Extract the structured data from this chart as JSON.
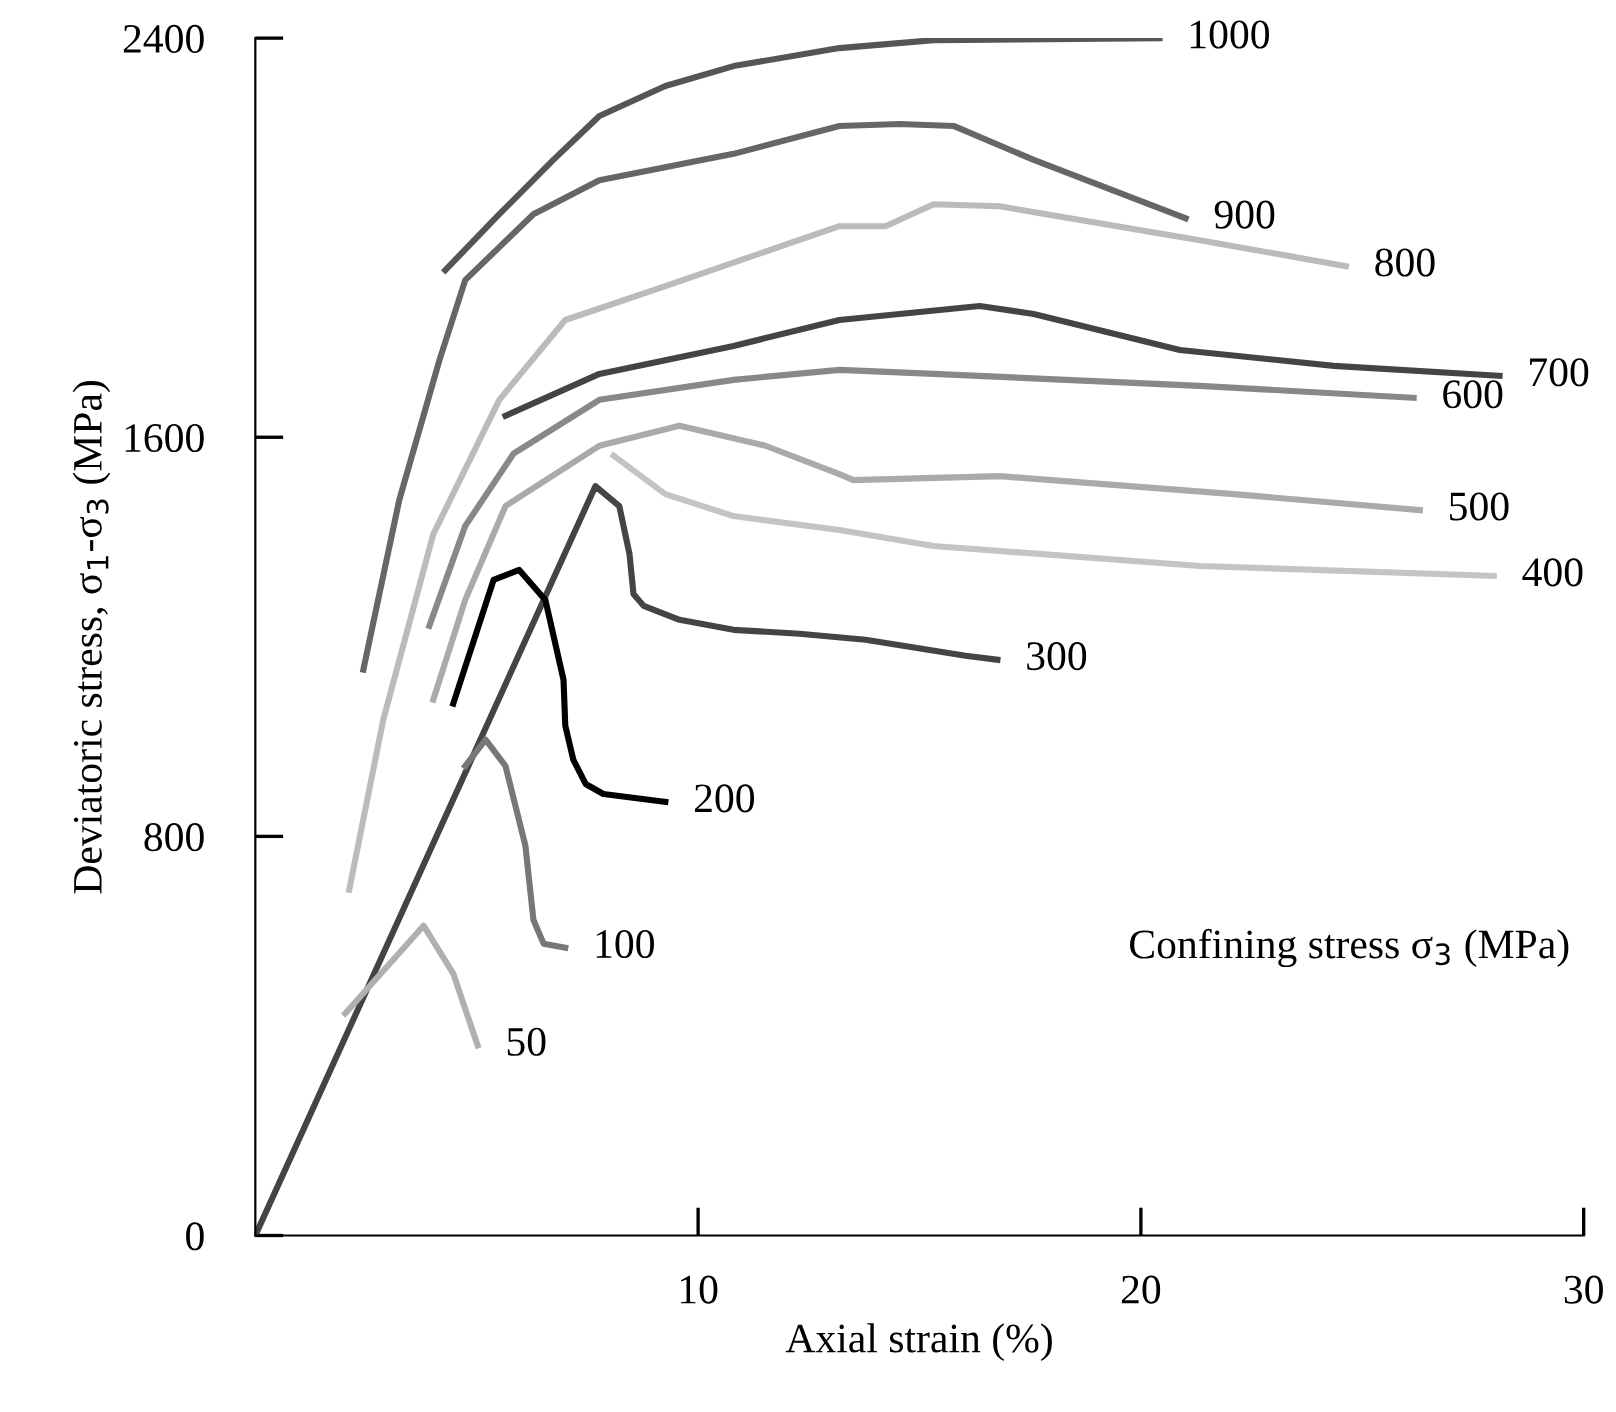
{
  "chart_data": {
    "type": "line",
    "xlabel": "Axial strain (%)",
    "ylabel": "Deviatoric stress, σ$_{1}$-σ$_{3}$ (MPa)",
    "legend_title": "Confining stress σ$_{3}$ (MPa)",
    "xlim": [
      0,
      30
    ],
    "ylim": [
      0,
      2400
    ],
    "xticks": [
      10,
      20,
      30
    ],
    "yticks": [
      0,
      800,
      1600,
      2400
    ],
    "grid": false,
    "legend": false,
    "marker": "none",
    "line_style": "solid",
    "series": [
      {
        "name": "1000",
        "color": "#555555",
        "x": [
          4.29,
          5.51,
          6.73,
          7.77,
          9.26,
          10.8,
          13.19,
          15.32,
          20.42
        ],
        "values": [
          1935,
          2047,
          2156,
          2244,
          2304,
          2344,
          2380,
          2396,
          2400
        ]
      },
      {
        "name": "900",
        "color": "#666666",
        "x": [
          2.44,
          3.25,
          4.16,
          4.74,
          6.28,
          7.77,
          10.8,
          13.19,
          14.55,
          15.77,
          17.58,
          21.01
        ],
        "values": [
          1134,
          1474,
          1755,
          1915,
          2047,
          2115,
          2168,
          2224,
          2228,
          2224,
          2156,
          2039
        ]
      },
      {
        "name": "800",
        "color": "#bbbbbb",
        "x": [
          2.12,
          2.89,
          4.02,
          5.51,
          7.0,
          9.26,
          13.19,
          14.23,
          15.32,
          16.81,
          21.33,
          24.63
        ],
        "values": [
          693,
          1034,
          1406,
          1675,
          1835,
          1903,
          2023,
          2023,
          2067,
          2063,
          1995,
          1943
        ]
      },
      {
        "name": "700",
        "color": "#444444",
        "x": [
          5.65,
          7.77,
          10.8,
          13.19,
          14.55,
          16.36,
          17.58,
          20.88,
          24.36,
          28.1
        ],
        "values": [
          1643,
          1727,
          1783,
          1835,
          1847,
          1863,
          1847,
          1775,
          1743,
          1723
        ]
      },
      {
        "name": "600",
        "color": "#888888",
        "x": [
          3.93,
          4.74,
          5.83,
          7.77,
          10.8,
          13.19,
          15.32,
          21.33,
          26.16
        ],
        "values": [
          1222,
          1422,
          1567,
          1675,
          1715,
          1735,
          1727,
          1703,
          1679
        ]
      },
      {
        "name": "500",
        "color": "#aaaaaa",
        "x": [
          4.02,
          4.74,
          5.65,
          7.77,
          9.58,
          11.52,
          13.19,
          13.51,
          16.81,
          22.1,
          26.3
        ],
        "values": [
          1074,
          1274,
          1462,
          1583,
          1623,
          1583,
          1526,
          1514,
          1522,
          1486,
          1454
        ]
      },
      {
        "name": "400",
        "color": "#c4c4c4",
        "x": [
          8.09,
          9.26,
          10.8,
          13.19,
          15.32,
          21.33,
          27.97
        ],
        "values": [
          1563,
          1486,
          1442,
          1414,
          1382,
          1342,
          1322
        ]
      },
      {
        "name": "300",
        "color": "#444444",
        "x": [
          0,
          7.68,
          8.22,
          8.45,
          8.54,
          8.77,
          9.58,
          10.8,
          12.29,
          13.78,
          16.04,
          16.76
        ],
        "values": [
          0,
          1502,
          1462,
          1366,
          1286,
          1262,
          1234,
          1214,
          1206,
          1194,
          1162,
          1154
        ]
      },
      {
        "name": "200",
        "color": "#000000",
        "x": [
          4.47,
          5.38,
          5.96,
          6.55,
          6.96,
          7.0,
          7.18,
          7.46,
          7.86,
          9.26
        ],
        "values": [
          1066,
          1314,
          1334,
          1274,
          1114,
          1022,
          954,
          905,
          885,
          869
        ]
      },
      {
        "name": "100",
        "color": "#777777",
        "x": [
          4.74,
          5.2,
          5.65,
          6.1,
          6.28,
          6.51,
          7.0
        ],
        "values": [
          941,
          994,
          941,
          781,
          633,
          585,
          577
        ]
      },
      {
        "name": "50",
        "color": "#b0b0b0",
        "x": [
          2.03,
          3.8,
          4.47,
          5.02
        ],
        "values": [
          445,
          621,
          525,
          381
        ]
      }
    ]
  }
}
